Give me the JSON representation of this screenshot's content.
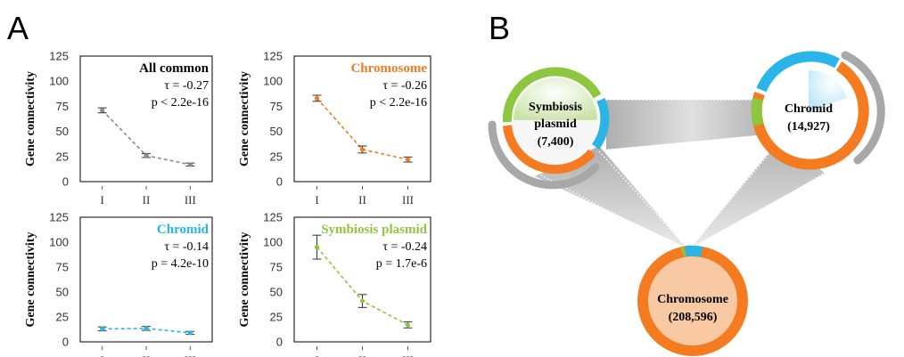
{
  "panel_labels": {
    "a": "A",
    "b": "B"
  },
  "chart_data": [
    {
      "type": "line",
      "categories": [
        "I",
        "II",
        "III"
      ],
      "ylabel": "Gene connectivity",
      "ylim": [
        0,
        125
      ],
      "yticks": [
        "0",
        "25",
        "50",
        "75",
        "100",
        "125"
      ],
      "title": "All common",
      "title_color": "#000000",
      "series": [
        {
          "values": [
            71,
            26,
            17
          ],
          "err": [
            2.5,
            2,
            1.5
          ],
          "color": "#8c8c8c"
        }
      ],
      "annotations": [
        "τ = -0.27",
        "p < 2.2e-16"
      ]
    },
    {
      "type": "line",
      "categories": [
        "I",
        "II",
        "III"
      ],
      "ylabel": "Gene connectivity",
      "ylim": [
        0,
        125
      ],
      "yticks": [
        "0",
        "25",
        "50",
        "75",
        "100",
        "125"
      ],
      "title": "Chromosome",
      "title_color": "#f47b20",
      "series": [
        {
          "values": [
            83,
            32,
            22
          ],
          "err": [
            3,
            3.5,
            2.5
          ],
          "color": "#f47b20"
        }
      ],
      "annotations": [
        "τ = -0.26",
        "p < 2.2e-16"
      ]
    },
    {
      "type": "line",
      "categories": [
        "I",
        "II",
        "III"
      ],
      "ylabel": "Gene connectivity",
      "ylim": [
        0,
        125
      ],
      "yticks": [
        "0",
        "25",
        "50",
        "75",
        "100",
        "125"
      ],
      "title": "Chromid",
      "title_color": "#29b5e8",
      "series": [
        {
          "values": [
            13,
            13.5,
            9
          ],
          "err": [
            2,
            2,
            1.5
          ],
          "color": "#29b5e8"
        }
      ],
      "annotations": [
        "τ = -0.14",
        "p = 4.2e-10"
      ]
    },
    {
      "type": "line",
      "categories": [
        "I",
        "II",
        "III"
      ],
      "ylabel": "Gene connectivity",
      "ylim": [
        0,
        125
      ],
      "yticks": [
        "0",
        "25",
        "50",
        "75",
        "100",
        "125"
      ],
      "title": "Symbiosis plasmid",
      "title_color": "#8dc63f",
      "series": [
        {
          "values": [
            95,
            41,
            17
          ],
          "err": [
            12,
            6.5,
            3
          ],
          "color": "#8dc63f"
        }
      ],
      "annotations": [
        "τ = -0.24",
        "p = 1.7e-6"
      ]
    }
  ],
  "diagram": {
    "colors": {
      "orange": "#f47b20",
      "blue": "#29b5e8",
      "green": "#8dc63f",
      "shadow": "#a8a8a8"
    },
    "nodes": [
      {
        "id": "symbiosis",
        "label_lines": [
          "Symbiosis",
          "plasmid",
          "(7,400)"
        ]
      },
      {
        "id": "chromid",
        "label_lines": [
          "Chromid",
          "(14,927)"
        ]
      },
      {
        "id": "chromosome",
        "label_lines": [
          "Chromosome",
          "(208,596)"
        ]
      }
    ]
  }
}
